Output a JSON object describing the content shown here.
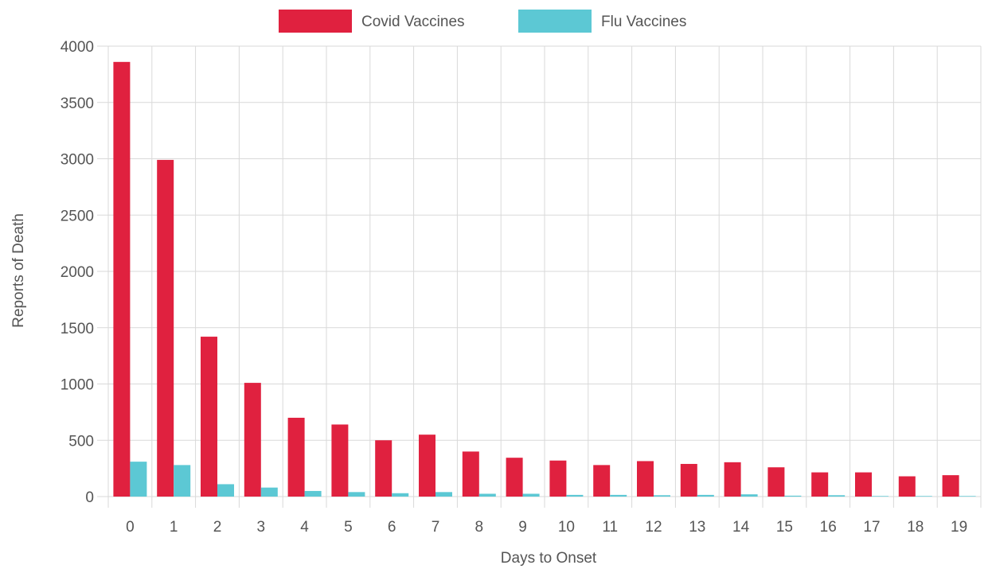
{
  "chart_data": {
    "type": "bar",
    "categories": [
      "0",
      "1",
      "2",
      "3",
      "4",
      "5",
      "6",
      "7",
      "8",
      "9",
      "10",
      "11",
      "12",
      "13",
      "14",
      "15",
      "16",
      "17",
      "18",
      "19"
    ],
    "series": [
      {
        "name": "Covid Vaccines",
        "color": "#e0213f",
        "values": [
          3860,
          2990,
          1420,
          1010,
          700,
          640,
          500,
          550,
          400,
          345,
          320,
          280,
          315,
          290,
          305,
          260,
          215,
          215,
          180,
          190
        ]
      },
      {
        "name": "Flu Vaccines",
        "color": "#5cc8d4",
        "values": [
          310,
          280,
          110,
          80,
          50,
          40,
          30,
          40,
          25,
          25,
          15,
          15,
          12,
          15,
          20,
          8,
          12,
          5,
          5,
          5
        ]
      }
    ],
    "xlabel": "Days to Onset",
    "ylabel": "Reports of Death",
    "ylim": [
      0,
      4000
    ],
    "yticks": [
      0,
      500,
      1000,
      1500,
      2000,
      2500,
      3000,
      3500,
      4000
    ],
    "grid": true,
    "legend_position": "top-center"
  }
}
